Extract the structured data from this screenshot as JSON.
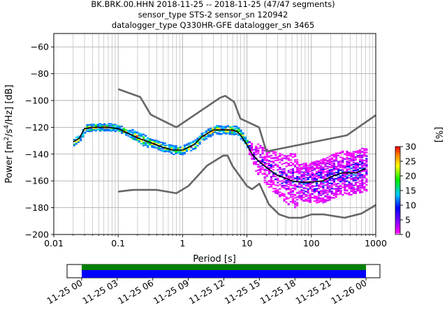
{
  "title": {
    "line1": "BK.BRK.00.HHN   2018-11-25 -- 2018-11-25  (47/47 segments)",
    "line2": "sensor_type STS-2 sensor_sn 120942",
    "line3": "datalogger_type Q330HR-GFE datalogger_sn 3465"
  },
  "colorbar": {
    "label": "[%]",
    "ticks": [
      "0",
      "5",
      "10",
      "15",
      "20",
      "25",
      "30"
    ]
  },
  "timeline": {
    "ticks": [
      "11-25 00",
      "11-25 03",
      "11-25 06",
      "11-25 09",
      "11-25 12",
      "11-25 15",
      "11-25 18",
      "11-25 21",
      "11-26 00"
    ],
    "colors": {
      "top": "#008000",
      "bottom": "#0000ff"
    }
  },
  "chart_data": {
    "type": "heatmap",
    "title": "BK.BRK.00.HHN 2018-11-25 -- 2018-11-25 (47/47 segments)",
    "xlabel": "Period [s]",
    "ylabel": "Power [m^2/s^4/Hz] [dB]",
    "xscale": "log",
    "xlim": [
      0.01,
      1000
    ],
    "ylim": [
      -200,
      -50
    ],
    "xticks": [
      "0.01",
      "0.1",
      "1",
      "10",
      "100",
      "1000"
    ],
    "yticks": [
      "−60",
      "−80",
      "−100",
      "−120",
      "−140",
      "−160",
      "−180",
      "−200"
    ],
    "grid": true,
    "colorbar_range_percent": [
      0,
      30
    ],
    "mean_curve": {
      "x": [
        0.02,
        0.025,
        0.03,
        0.04,
        0.05,
        0.07,
        0.1,
        0.15,
        0.2,
        0.3,
        0.5,
        0.7,
        1.0,
        1.5,
        2,
        3,
        4,
        5,
        6,
        7,
        8,
        10,
        12,
        15,
        20,
        30,
        40,
        50,
        70,
        100,
        150,
        200,
        300,
        400,
        500,
        600,
        700
      ],
      "y": [
        -131,
        -128,
        -121,
        -120,
        -120,
        -120,
        -121,
        -125,
        -128,
        -131,
        -135,
        -137,
        -137,
        -133,
        -127,
        -122,
        -122,
        -122,
        -122,
        -123,
        -126,
        -133,
        -140,
        -145,
        -150,
        -156,
        -158,
        -160,
        -161,
        -161,
        -160,
        -157,
        -154,
        -154,
        -154,
        -152,
        -151
      ]
    },
    "new_high_noise_model": {
      "x": [
        0.1,
        0.22,
        0.32,
        0.8,
        3.8,
        4.6,
        6.3,
        7.9,
        15.4,
        20,
        354.8,
        1000
      ],
      "y": [
        -91.5,
        -97.4,
        -110.5,
        -120,
        -98,
        -96.5,
        -101,
        -113.5,
        -120,
        -138,
        -126,
        -111
      ]
    },
    "new_low_noise_model": {
      "x": [
        0.1,
        0.17,
        0.4,
        0.8,
        1.24,
        2.4,
        4.3,
        5.0,
        6.0,
        10,
        12,
        15.6,
        21.9,
        31.6,
        45,
        70,
        101,
        154,
        328,
        600,
        1000
      ],
      "y": [
        -168,
        -166.7,
        -166.7,
        -169.2,
        -163.7,
        -148.6,
        -141.1,
        -141.1,
        -149,
        -163.8,
        -166.2,
        -162.1,
        -177.5,
        -185,
        -187.5,
        -187.5,
        -185,
        -185,
        -187.5,
        -184.4,
        -178
      ]
    }
  }
}
